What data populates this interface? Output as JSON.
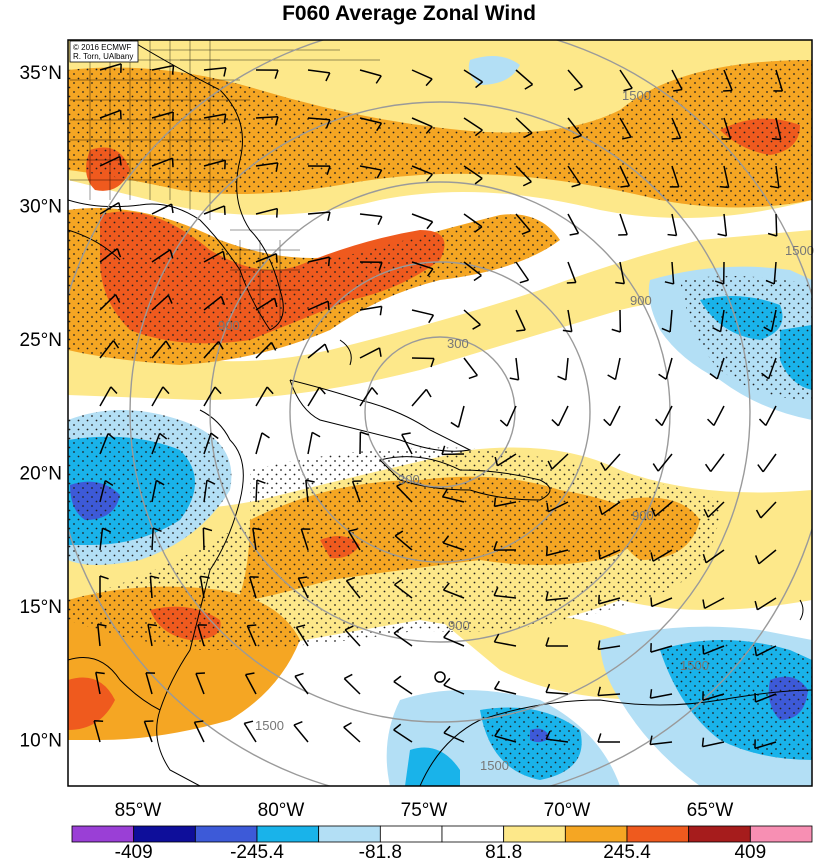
{
  "title": "F060 Average Zonal Wind",
  "credit": {
    "line1": "© 2016 ECMWF",
    "line2": "R. Torn, UAlbany"
  },
  "lat_ticks": [
    {
      "lat": 35,
      "label": "35°N"
    },
    {
      "lat": 30,
      "label": "30°N"
    },
    {
      "lat": 25,
      "label": "25°N"
    },
    {
      "lat": 20,
      "label": "20°N"
    },
    {
      "lat": 15,
      "label": "15°N"
    },
    {
      "lat": 10,
      "label": "10°N"
    }
  ],
  "lon_ticks": [
    {
      "lon": -85,
      "label": "85°W"
    },
    {
      "lon": -80,
      "label": "80°W"
    },
    {
      "lon": -75,
      "label": "75°W"
    },
    {
      "lon": -70,
      "label": "70°W"
    },
    {
      "lon": -65,
      "label": "65°W"
    }
  ],
  "ring_labels": [
    "300",
    "300",
    "900",
    "900",
    "900",
    "900",
    "1500",
    "1500",
    "1500",
    "1500",
    "1500"
  ],
  "colorbar": {
    "colors": [
      "#9a3fd6",
      "#0e0e9a",
      "#3d5ad8",
      "#19b3ea",
      "#b3dff5",
      "#ffffff",
      "#ffffff",
      "#fde88a",
      "#f5a623",
      "#ef5a1e",
      "#a61c1c",
      "#f78fb3"
    ],
    "labels": [
      "-409",
      "-245.4",
      "-81.8",
      "81.8",
      "245.4",
      "409"
    ]
  },
  "colors": {
    "orange": "#f5a623",
    "red": "#ef5a1e",
    "yellow": "#fde88a",
    "lightblue": "#b3dff5",
    "blue": "#19b3ea",
    "darkblue": "#3d5ad8"
  }
}
